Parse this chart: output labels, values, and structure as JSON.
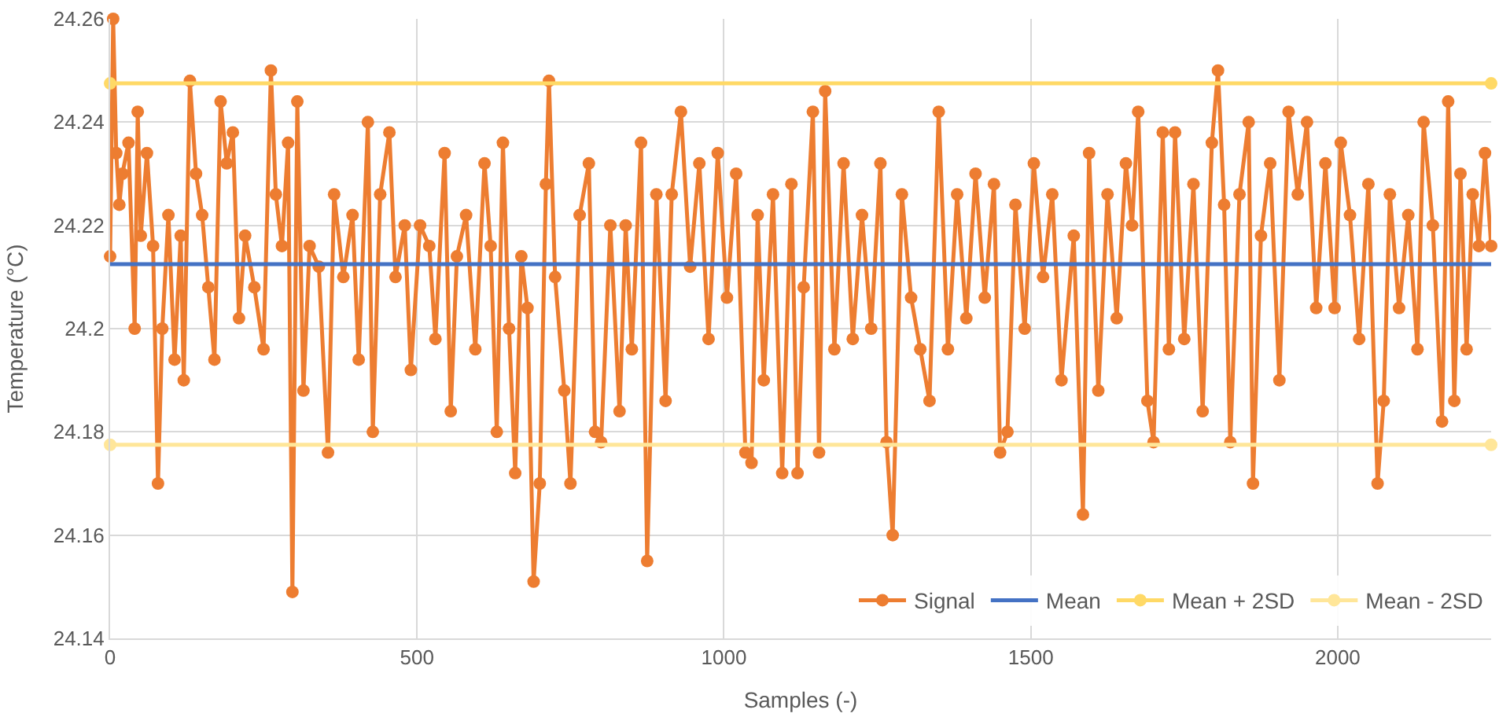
{
  "chart_data": {
    "type": "line",
    "xlabel": "Samples (-)",
    "ylabel": "Temperature (°C)",
    "xlim": [
      0,
      2250
    ],
    "xticks": [
      0,
      500,
      1000,
      1500,
      2000
    ],
    "ylim": [
      24.14,
      24.26
    ],
    "yticks": [
      24.14,
      24.16,
      24.18,
      24.2,
      24.22,
      24.24,
      24.26
    ],
    "grid": true,
    "legend": "bottom right",
    "series": [
      {
        "name": "Signal",
        "color": "#ed7d31",
        "marker": "circle",
        "x": [
          0,
          5,
          10,
          15,
          20,
          30,
          40,
          45,
          50,
          60,
          70,
          78,
          85,
          95,
          105,
          115,
          120,
          130,
          140,
          150,
          160,
          170,
          180,
          190,
          200,
          210,
          220,
          235,
          250,
          262,
          270,
          280,
          290,
          297,
          305,
          315,
          325,
          340,
          355,
          365,
          380,
          395,
          405,
          420,
          428,
          440,
          455,
          465,
          480,
          490,
          505,
          520,
          530,
          545,
          555,
          565,
          580,
          595,
          610,
          620,
          630,
          640,
          650,
          660,
          670,
          680,
          690,
          700,
          710,
          715,
          725,
          740,
          750,
          765,
          780,
          790,
          800,
          815,
          830,
          840,
          850,
          865,
          875,
          890,
          905,
          915,
          930,
          945,
          960,
          975,
          990,
          1005,
          1020,
          1035,
          1045,
          1055,
          1065,
          1080,
          1095,
          1110,
          1120,
          1130,
          1145,
          1155,
          1165,
          1180,
          1195,
          1210,
          1225,
          1240,
          1255,
          1265,
          1275,
          1290,
          1305,
          1320,
          1335,
          1350,
          1365,
          1380,
          1395,
          1410,
          1425,
          1440,
          1450,
          1462,
          1475,
          1490,
          1505,
          1520,
          1535,
          1550,
          1570,
          1585,
          1595,
          1610,
          1625,
          1640,
          1655,
          1665,
          1675,
          1690,
          1700,
          1715,
          1725,
          1735,
          1750,
          1765,
          1780,
          1795,
          1805,
          1815,
          1825,
          1840,
          1855,
          1862,
          1875,
          1890,
          1905,
          1920,
          1935,
          1950,
          1965,
          1980,
          1995,
          2005,
          2020,
          2035,
          2050,
          2065,
          2075,
          2085,
          2100,
          2115,
          2130,
          2140,
          2155,
          2170,
          2180,
          2190,
          2200,
          2210,
          2220,
          2230,
          2240,
          2250
        ],
        "values": [
          24.214,
          24.26,
          24.234,
          24.224,
          24.23,
          24.236,
          24.2,
          24.242,
          24.218,
          24.234,
          24.216,
          24.17,
          24.2,
          24.222,
          24.194,
          24.218,
          24.19,
          24.248,
          24.23,
          24.222,
          24.208,
          24.194,
          24.244,
          24.232,
          24.238,
          24.202,
          24.218,
          24.208,
          24.196,
          24.25,
          24.226,
          24.216,
          24.236,
          24.149,
          24.244,
          24.188,
          24.216,
          24.212,
          24.176,
          24.226,
          24.21,
          24.222,
          24.194,
          24.24,
          24.18,
          24.226,
          24.238,
          24.21,
          24.22,
          24.192,
          24.22,
          24.216,
          24.198,
          24.234,
          24.184,
          24.214,
          24.222,
          24.196,
          24.232,
          24.216,
          24.18,
          24.236,
          24.2,
          24.172,
          24.214,
          24.204,
          24.151,
          24.17,
          24.228,
          24.248,
          24.21,
          24.188,
          24.17,
          24.222,
          24.232,
          24.18,
          24.178,
          24.22,
          24.184,
          24.22,
          24.196,
          24.236,
          24.155,
          24.226,
          24.186,
          24.226,
          24.242,
          24.212,
          24.232,
          24.198,
          24.234,
          24.206,
          24.23,
          24.176,
          24.174,
          24.222,
          24.19,
          24.226,
          24.172,
          24.228,
          24.172,
          24.208,
          24.242,
          24.176,
          24.246,
          24.196,
          24.232,
          24.198,
          24.222,
          24.2,
          24.232,
          24.178,
          24.16,
          24.226,
          24.206,
          24.196,
          24.186,
          24.242,
          24.196,
          24.226,
          24.202,
          24.23,
          24.206,
          24.228,
          24.176,
          24.18,
          24.224,
          24.2,
          24.232,
          24.21,
          24.226,
          24.19,
          24.218,
          24.164,
          24.234,
          24.188,
          24.226,
          24.202,
          24.232,
          24.22,
          24.242,
          24.186,
          24.178,
          24.238,
          24.196,
          24.238,
          24.198,
          24.228,
          24.184,
          24.236,
          24.25,
          24.224,
          24.178,
          24.226,
          24.24,
          24.17,
          24.218,
          24.232,
          24.19,
          24.242,
          24.226,
          24.24,
          24.204,
          24.232,
          24.204,
          24.236,
          24.222,
          24.198,
          24.228,
          24.17,
          24.186,
          24.226,
          24.204,
          24.222,
          24.196,
          24.24,
          24.22,
          24.182,
          24.244,
          24.186,
          24.23,
          24.196,
          24.226,
          24.216,
          24.234,
          24.216
        ]
      },
      {
        "name": "Mean",
        "color": "#4472c4",
        "marker": "none",
        "x": [
          0,
          2250
        ],
        "values": [
          24.2125,
          24.2125
        ]
      },
      {
        "name": "Mean + 2SD",
        "color": "#ffd966",
        "marker": "circle",
        "x": [
          0,
          2250
        ],
        "values": [
          24.2475,
          24.2475
        ]
      },
      {
        "name": "Mean - 2SD",
        "color": "#ffe699",
        "marker": "circle",
        "x": [
          0,
          2250
        ],
        "values": [
          24.1775,
          24.1775
        ]
      }
    ]
  }
}
